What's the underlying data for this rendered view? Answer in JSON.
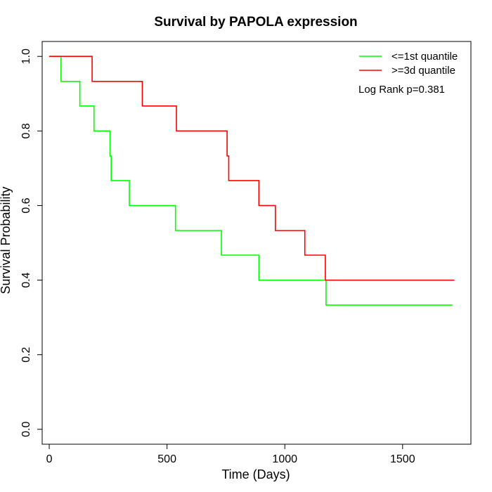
{
  "chart_data": {
    "type": "line",
    "title": "Survival by PAPOLA expression",
    "xlabel": "Time (Days)",
    "ylabel": "Survival Probability",
    "xlim": [
      -30,
      1790
    ],
    "ylim": [
      -0.04,
      1.04
    ],
    "x_ticks": [
      0,
      500,
      1000,
      1500
    ],
    "y_ticks": [
      0.0,
      0.2,
      0.4,
      0.6,
      0.8,
      1.0
    ],
    "x_tick_labels": [
      "0",
      "500",
      "1000",
      "1500"
    ],
    "y_tick_labels": [
      "0.0",
      "0.2",
      "0.4",
      "0.6",
      "0.8",
      "1.0"
    ],
    "grid": false,
    "legend_position": "top-right",
    "annotation": "Log Rank p=0.381",
    "series": [
      {
        "name": "<=1st quantile",
        "color": "#00ff00",
        "step": true,
        "x": [
          0,
          50,
          130,
          190,
          258,
          263,
          340,
          536,
          731,
          890,
          1175,
          1712
        ],
        "y": [
          1.0,
          0.933,
          0.867,
          0.8,
          0.733,
          0.667,
          0.6,
          0.533,
          0.467,
          0.4,
          0.333,
          0.333
        ]
      },
      {
        "name": ">=3d quantile",
        "color": "#ff0000",
        "step": true,
        "x": [
          0,
          182,
          395,
          540,
          755,
          762,
          890,
          960,
          1085,
          1172,
          1720
        ],
        "y": [
          1.0,
          0.933,
          0.867,
          0.8,
          0.733,
          0.667,
          0.6,
          0.533,
          0.467,
          0.4,
          0.4
        ]
      }
    ]
  }
}
